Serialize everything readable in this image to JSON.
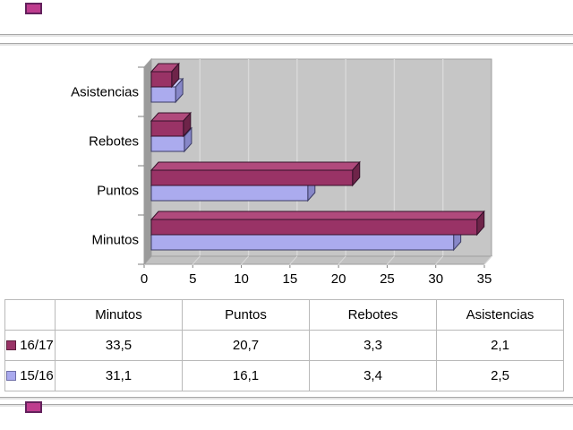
{
  "colors": {
    "rule_dark": "#A8A8A8",
    "rule_light": "#E4E4E4",
    "corner_accent": "#BE3C8E",
    "corner_accent_border": "#63215C",
    "table_border": "#B9B9B9",
    "text": "#000000",
    "plot_bg": "#C6C6C6",
    "plot_wall": "#9B9B9B",
    "plot_floor": "#C1C1C1",
    "gridline": "#D9D9D9",
    "plot_edge": "#9E9E9E",
    "axis_tick": "#7E7E7E"
  },
  "chart_data": {
    "type": "bar",
    "orientation": "horizontal",
    "style": "3d",
    "categories": [
      "Asistencias",
      "Rebotes",
      "Puntos",
      "Minutos"
    ],
    "series": [
      {
        "name": "16/17",
        "values": [
          2.1,
          3.3,
          20.7,
          33.5
        ],
        "color": "#993366",
        "color_top": "#B04A7C",
        "color_side": "#6E2449",
        "outline": "#35112A"
      },
      {
        "name": "15/16",
        "values": [
          2.5,
          3.4,
          16.1,
          31.1
        ],
        "color": "#ABABEE",
        "color_top": "#C9C9F6",
        "color_side": "#8787C8",
        "outline": "#3C3C66"
      }
    ],
    "x_ticks": [
      0,
      5,
      10,
      15,
      20,
      25,
      30,
      35
    ],
    "xlim": [
      0,
      35
    ],
    "grid": true,
    "legend_position": "in-table"
  },
  "table": {
    "columns": [
      "Minutos",
      "Puntos",
      "Rebotes",
      "Asistencias"
    ],
    "rows": [
      {
        "label": "16/17",
        "chip_color": "#993366",
        "chip_border": "#5C1F3D",
        "values": [
          "33,5",
          "20,7",
          "3,3",
          "2,1"
        ]
      },
      {
        "label": "15/16",
        "chip_color": "#AAAAEE",
        "chip_border": "#6F6FA8",
        "values": [
          "31,1",
          "16,1",
          "3,4",
          "2,5"
        ]
      }
    ]
  }
}
